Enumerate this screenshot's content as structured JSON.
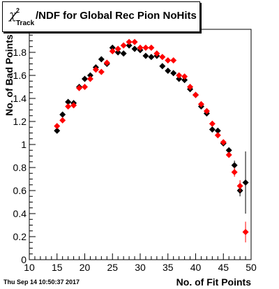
{
  "title": {
    "chi": "χ",
    "sup": "2",
    "sub": "Track",
    "main": "/NDF for Global Rec Pion NoHits"
  },
  "footer": "Thu Sep 14 10:50:37 2017",
  "chart_data": {
    "type": "scatter",
    "title": "χ²Track/NDF for Global Rec Pion NoHits",
    "xlabel": "No. of Fit Points",
    "ylabel": "No. of Bad Points",
    "xlim": [
      10,
      50
    ],
    "ylim": [
      0,
      2
    ],
    "x_ticks": [
      10,
      15,
      20,
      25,
      30,
      35,
      40,
      45,
      50
    ],
    "y_ticks": [
      0,
      0.2,
      0.4,
      0.6,
      0.8,
      1,
      1.2,
      1.4,
      1.6,
      1.8
    ],
    "y_tick_labels": [
      "0",
      "0.2",
      "0.4",
      "0.6",
      "0.8",
      "1",
      "1.2",
      "1.4",
      "1.6",
      "1.8"
    ],
    "grid": false,
    "series": [
      {
        "color": "#000000",
        "marker": "diamond",
        "points": [
          {
            "x": 15,
            "y": 1.12,
            "err": 0.02
          },
          {
            "x": 16,
            "y": 1.26,
            "err": 0.02
          },
          {
            "x": 17,
            "y": 1.37,
            "err": 0.02
          },
          {
            "x": 18,
            "y": 1.36,
            "err": 0.02
          },
          {
            "x": 19,
            "y": 1.5,
            "err": 0.02
          },
          {
            "x": 20,
            "y": 1.57,
            "err": 0.02
          },
          {
            "x": 21,
            "y": 1.6,
            "err": 0.02
          },
          {
            "x": 22,
            "y": 1.67,
            "err": 0.02
          },
          {
            "x": 23,
            "y": 1.74,
            "err": 0.02
          },
          {
            "x": 24,
            "y": 1.7,
            "err": 0.02
          },
          {
            "x": 25,
            "y": 1.84,
            "err": 0.02
          },
          {
            "x": 26,
            "y": 1.8,
            "err": 0.02
          },
          {
            "x": 27,
            "y": 1.79,
            "err": 0.02
          },
          {
            "x": 28,
            "y": 1.86,
            "err": 0.02
          },
          {
            "x": 29,
            "y": 1.83,
            "err": 0.02
          },
          {
            "x": 30,
            "y": 1.82,
            "err": 0.02
          },
          {
            "x": 31,
            "y": 1.77,
            "err": 0.02
          },
          {
            "x": 32,
            "y": 1.76,
            "err": 0.02
          },
          {
            "x": 33,
            "y": 1.77,
            "err": 0.02
          },
          {
            "x": 34,
            "y": 1.68,
            "err": 0.02
          },
          {
            "x": 35,
            "y": 1.64,
            "err": 0.02
          },
          {
            "x": 36,
            "y": 1.62,
            "err": 0.02
          },
          {
            "x": 37,
            "y": 1.57,
            "err": 0.02
          },
          {
            "x": 38,
            "y": 1.56,
            "err": 0.02
          },
          {
            "x": 39,
            "y": 1.48,
            "err": 0.02
          },
          {
            "x": 40,
            "y": 1.43,
            "err": 0.02
          },
          {
            "x": 41,
            "y": 1.33,
            "err": 0.02
          },
          {
            "x": 42,
            "y": 1.27,
            "err": 0.02
          },
          {
            "x": 43,
            "y": 1.13,
            "err": 0.02
          },
          {
            "x": 44,
            "y": 1.12,
            "err": 0.02
          },
          {
            "x": 45,
            "y": 1.01,
            "err": 0.02
          },
          {
            "x": 46,
            "y": 0.95,
            "err": 0.02
          },
          {
            "x": 47,
            "y": 0.82,
            "err": 0.04
          },
          {
            "x": 48,
            "y": 0.6,
            "err": 0.05
          },
          {
            "x": 49,
            "y": 0.67,
            "err": 0.27
          }
        ]
      },
      {
        "color": "#ff0000",
        "marker": "diamond",
        "points": [
          {
            "x": 15,
            "y": 1.16,
            "err": 0.02
          },
          {
            "x": 16,
            "y": 1.21,
            "err": 0.02
          },
          {
            "x": 17,
            "y": 1.33,
            "err": 0.02
          },
          {
            "x": 18,
            "y": 1.34,
            "err": 0.02
          },
          {
            "x": 19,
            "y": 1.49,
            "err": 0.02
          },
          {
            "x": 20,
            "y": 1.5,
            "err": 0.02
          },
          {
            "x": 21,
            "y": 1.57,
            "err": 0.02
          },
          {
            "x": 22,
            "y": 1.65,
            "err": 0.02
          },
          {
            "x": 23,
            "y": 1.63,
            "err": 0.02
          },
          {
            "x": 24,
            "y": 1.71,
            "err": 0.02
          },
          {
            "x": 25,
            "y": 1.81,
            "err": 0.02
          },
          {
            "x": 26,
            "y": 1.83,
            "err": 0.02
          },
          {
            "x": 27,
            "y": 1.86,
            "err": 0.02
          },
          {
            "x": 28,
            "y": 1.89,
            "err": 0.02
          },
          {
            "x": 29,
            "y": 1.89,
            "err": 0.02
          },
          {
            "x": 30,
            "y": 1.84,
            "err": 0.02
          },
          {
            "x": 31,
            "y": 1.84,
            "err": 0.02
          },
          {
            "x": 32,
            "y": 1.84,
            "err": 0.02
          },
          {
            "x": 33,
            "y": 1.79,
            "err": 0.02
          },
          {
            "x": 34,
            "y": 1.76,
            "err": 0.02
          },
          {
            "x": 35,
            "y": 1.73,
            "err": 0.02
          },
          {
            "x": 36,
            "y": 1.73,
            "err": 0.02
          },
          {
            "x": 37,
            "y": 1.6,
            "err": 0.02
          },
          {
            "x": 38,
            "y": 1.59,
            "err": 0.02
          },
          {
            "x": 39,
            "y": 1.5,
            "err": 0.02
          },
          {
            "x": 40,
            "y": 1.43,
            "err": 0.02
          },
          {
            "x": 41,
            "y": 1.35,
            "err": 0.02
          },
          {
            "x": 42,
            "y": 1.29,
            "err": 0.02
          },
          {
            "x": 43,
            "y": 1.18,
            "err": 0.02
          },
          {
            "x": 44,
            "y": 1.08,
            "err": 0.02
          },
          {
            "x": 45,
            "y": 1.02,
            "err": 0.02
          },
          {
            "x": 46,
            "y": 0.91,
            "err": 0.02
          },
          {
            "x": 47,
            "y": 0.76,
            "err": 0.04
          },
          {
            "x": 48,
            "y": 0.64,
            "err": 0.05
          },
          {
            "x": 49,
            "y": 0.24,
            "err": 0.09
          }
        ]
      }
    ]
  }
}
